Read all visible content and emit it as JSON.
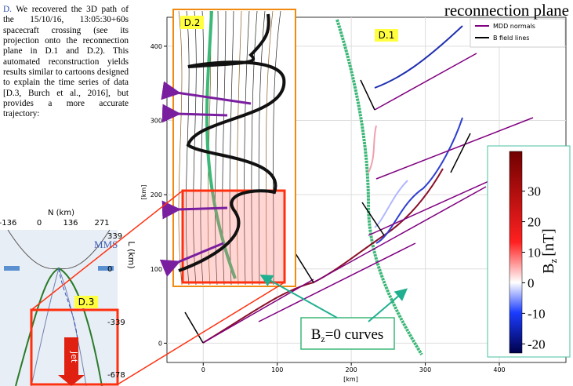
{
  "text_panel": {
    "label": "D.",
    "body": "We recovered the 3D path of the 15/10/16, 13:05:30+60s spacecraft crossing (see its projection onto the reconnection plane in D.1 and D.2). This automated reconstruction yields results similar to cartoons designed to explain the time series of data [D.3, Burch et al., 2016], but provides a more accurate trajectory:"
  },
  "cartoon": {
    "x_axis_label": "N (km)",
    "xticks": [
      -136,
      0,
      136,
      271
    ],
    "y_axis_label": "L (km)",
    "yticks": [
      339,
      0,
      -339,
      -678
    ],
    "mms_label": "MMS",
    "panel_label": "D.3",
    "jet_label": "Jet"
  },
  "plot": {
    "title": "reconnection plane",
    "panel_label": "D.1",
    "inset_label": "D.2",
    "xlabel": "[km]",
    "ylabel": "[km]",
    "xlim": [
      -49,
      490
    ],
    "ylim": [
      -26,
      439
    ],
    "xticks": [
      0,
      100,
      200,
      300,
      400
    ],
    "yticks": [
      0,
      100,
      200,
      300,
      400
    ],
    "grid": true,
    "legend": [
      {
        "name": "MDD normals",
        "color": "#800080"
      },
      {
        "name": "B field lines",
        "color": "#000000"
      }
    ],
    "annotation": {
      "base": "B",
      "sub": "z",
      "rest": "=0 curves"
    }
  },
  "colorbar": {
    "label": {
      "base": "B",
      "sub": "z",
      "rest": "[nT]"
    },
    "lim": [
      -23,
      43
    ],
    "ticks": [
      30,
      20,
      10,
      0,
      -10,
      -20
    ]
  }
}
